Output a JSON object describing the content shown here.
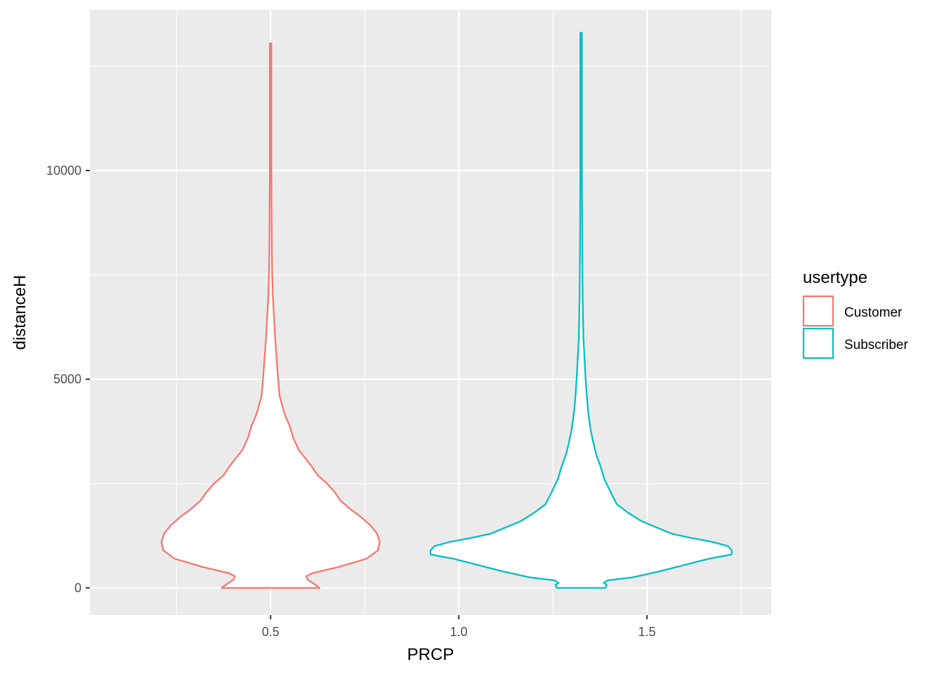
{
  "chart_data": {
    "type": "violin",
    "xlabel": "PRCP",
    "ylabel": "distanceH",
    "xlim": [
      0.02,
      1.83
    ],
    "ylim": [
      -650,
      13850
    ],
    "x_ticks": [
      0.5,
      1.0,
      1.5
    ],
    "x_tick_labels": [
      "0.5",
      "1.0",
      "1.5"
    ],
    "y_ticks": [
      0,
      5000,
      10000
    ],
    "y_tick_labels": [
      "0",
      "5000",
      "10000"
    ],
    "grid": true,
    "legend": {
      "title": "usertype",
      "position": "right",
      "items": [
        {
          "label": "Customer",
          "color": "#F8766D"
        },
        {
          "label": "Subscriber",
          "color": "#00BFC4"
        }
      ]
    },
    "series": [
      {
        "name": "Customer",
        "color": "#F8766D",
        "center_x": 0.5,
        "profile": [
          [
            0,
            0.13
          ],
          [
            100,
            0.115
          ],
          [
            200,
            0.098
          ],
          [
            280,
            0.095
          ],
          [
            350,
            0.11
          ],
          [
            500,
            0.18
          ],
          [
            700,
            0.255
          ],
          [
            900,
            0.285
          ],
          [
            1100,
            0.29
          ],
          [
            1300,
            0.283
          ],
          [
            1500,
            0.265
          ],
          [
            1700,
            0.24
          ],
          [
            1900,
            0.21
          ],
          [
            2100,
            0.185
          ],
          [
            2300,
            0.17
          ],
          [
            2500,
            0.15
          ],
          [
            2700,
            0.125
          ],
          [
            2900,
            0.11
          ],
          [
            3100,
            0.093
          ],
          [
            3300,
            0.075
          ],
          [
            3600,
            0.06
          ],
          [
            3900,
            0.05
          ],
          [
            4100,
            0.04
          ],
          [
            4300,
            0.033
          ],
          [
            4600,
            0.024
          ],
          [
            5000,
            0.02
          ],
          [
            5500,
            0.016
          ],
          [
            6000,
            0.012
          ],
          [
            6500,
            0.009
          ],
          [
            7000,
            0.006
          ],
          [
            7600,
            0.004
          ],
          [
            8500,
            0.003
          ],
          [
            10000,
            0.002
          ],
          [
            13050,
            0.002
          ]
        ]
      },
      {
        "name": "Subscriber",
        "color": "#00BFC4",
        "center_x": 1.325,
        "profile": [
          [
            0,
            0.065
          ],
          [
            70,
            0.068
          ],
          [
            120,
            0.06
          ],
          [
            180,
            0.07
          ],
          [
            250,
            0.135
          ],
          [
            400,
            0.21
          ],
          [
            550,
            0.275
          ],
          [
            700,
            0.34
          ],
          [
            800,
            0.4
          ],
          [
            900,
            0.4
          ],
          [
            1000,
            0.39
          ],
          [
            1100,
            0.35
          ],
          [
            1200,
            0.29
          ],
          [
            1300,
            0.24
          ],
          [
            1450,
            0.2
          ],
          [
            1600,
            0.16
          ],
          [
            1800,
            0.125
          ],
          [
            2000,
            0.095
          ],
          [
            2300,
            0.078
          ],
          [
            2600,
            0.062
          ],
          [
            2900,
            0.052
          ],
          [
            3200,
            0.04
          ],
          [
            3500,
            0.032
          ],
          [
            3800,
            0.025
          ],
          [
            4200,
            0.019
          ],
          [
            4600,
            0.015
          ],
          [
            5000,
            0.012
          ],
          [
            5500,
            0.009
          ],
          [
            6000,
            0.006
          ],
          [
            7000,
            0.004
          ],
          [
            8000,
            0.003
          ],
          [
            10000,
            0.002
          ],
          [
            13300,
            0.002
          ]
        ]
      }
    ]
  }
}
